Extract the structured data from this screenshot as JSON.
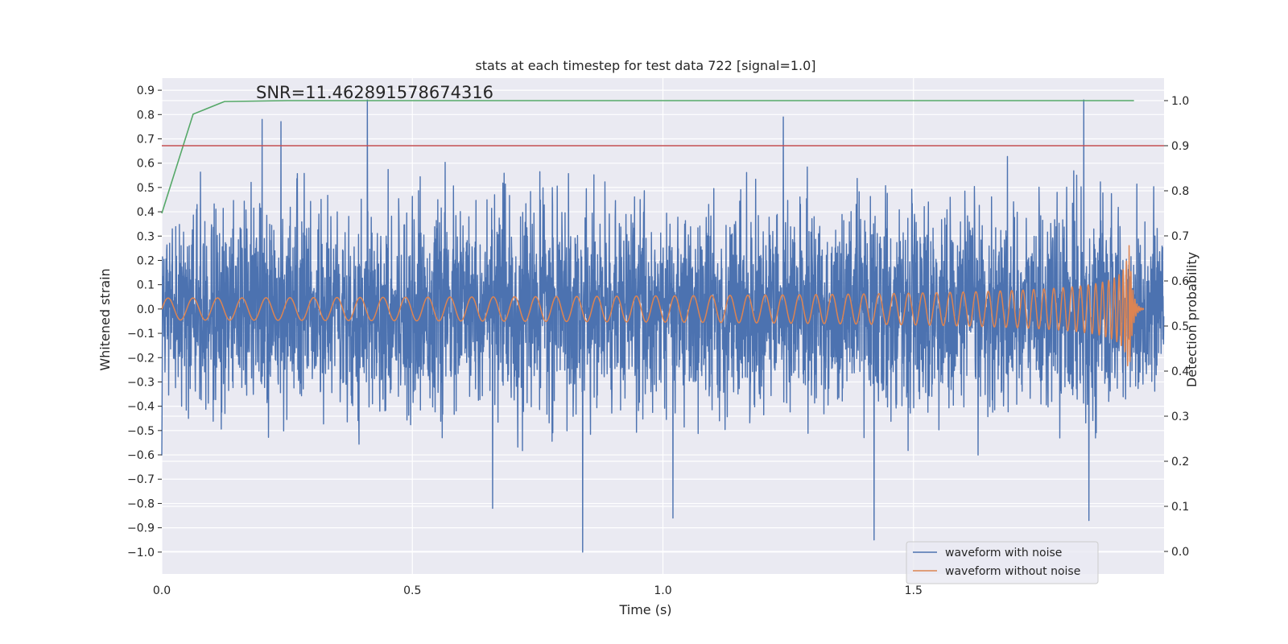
{
  "chart_data": {
    "type": "line",
    "title": "stats at each timestep for test data 722 [signal=1.0]",
    "xlabel": "Time (s)",
    "ylabel": "Whitened strain",
    "y2label": "Detection probability",
    "xlim": [
      0.0,
      2.0
    ],
    "ylim": [
      -1.09,
      0.95
    ],
    "y2lim": [
      -0.05,
      1.05
    ],
    "xticks": [
      "0.0",
      "0.5",
      "1.0",
      "1.5"
    ],
    "yticks": [
      "0.9",
      "0.8",
      "0.7",
      "0.6",
      "0.5",
      "0.4",
      "0.3",
      "0.2",
      "0.1",
      "0.0",
      "−0.1",
      "−0.2",
      "−0.3",
      "−0.4",
      "−0.5",
      "−0.6",
      "−0.7",
      "−0.8",
      "−0.9",
      "−1.0"
    ],
    "y2ticks": [
      "1.0",
      "0.9",
      "0.8",
      "0.7",
      "0.6",
      "0.5",
      "0.4",
      "0.3",
      "0.2",
      "0.1",
      "0.0"
    ],
    "grid": true,
    "legend_position": "lower-right",
    "annotation": "SNR=11.462891578674316",
    "colors": {
      "noisy": "#4c72b0",
      "clean": "#dd8452",
      "probability": "#55a868",
      "threshold": "#c44e52",
      "background": "#eaeaf2"
    },
    "series": [
      {
        "name": "waveform with noise",
        "axis": "left",
        "description_free": true,
        "x_range": [
          0.0,
          2.0
        ],
        "notable_points": [
          {
            "x": 0.41,
            "y": 0.86
          },
          {
            "x": 0.84,
            "y": -1.0
          },
          {
            "x": 1.84,
            "y": 0.86
          },
          {
            "x": 1.85,
            "y": -0.87
          },
          {
            "x": 1.24,
            "y": 0.79
          },
          {
            "x": 1.02,
            "y": -0.86
          },
          {
            "x": 0.66,
            "y": -0.82
          },
          {
            "x": 0.2,
            "y": 0.78
          }
        ]
      },
      {
        "name": "waveform without noise",
        "axis": "left",
        "x_range": [
          0.0,
          1.96
        ],
        "peak_amplitude": 0.33,
        "peak_time": 1.93
      }
    ],
    "probability_series": {
      "axis": "right",
      "x": [
        0.0,
        0.0625,
        0.125,
        0.25,
        0.5,
        1.0,
        1.5,
        1.94
      ],
      "y": [
        0.75,
        0.97,
        0.998,
        1.0,
        1.0,
        1.0,
        1.0,
        1.0
      ]
    },
    "threshold": 0.9
  }
}
